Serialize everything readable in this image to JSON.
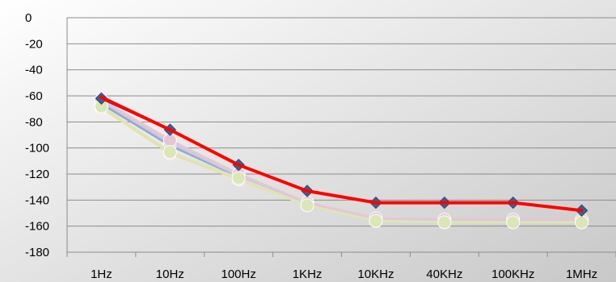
{
  "chart_data": {
    "type": "line",
    "title": "",
    "xlabel": "",
    "ylabel": "",
    "categories": [
      "1Hz",
      "10Hz",
      "100Hz",
      "1KHz",
      "10KHz",
      "40KHz",
      "100KHz",
      "1MHz"
    ],
    "ylim": [
      -180,
      0
    ],
    "yticks": [
      0,
      -20,
      -40,
      -60,
      -80,
      -100,
      -120,
      -140,
      -160,
      -180
    ],
    "grid": true,
    "legend": "none",
    "series": [
      {
        "color": "#9aa8c8",
        "marker": "circle",
        "values": [
          -66,
          -98,
          -122,
          -143,
          -155,
          -156,
          -156,
          -156
        ]
      },
      {
        "color": "#c4cce8",
        "marker": "circle",
        "values": [
          -64,
          -96,
          -121,
          -142,
          -155,
          -156,
          -156,
          -156
        ]
      },
      {
        "color": "#e8c4d4",
        "marker": "circle",
        "values": [
          -63,
          -94,
          -120,
          -142,
          -154,
          -155,
          -155,
          -155
        ]
      },
      {
        "color": "#f2d8a8",
        "marker": "circle",
        "values": [
          -69,
          -104,
          -124,
          -144,
          -156,
          -157,
          -157,
          -157
        ]
      },
      {
        "color": "#d8e8b8",
        "marker": "circle",
        "values": [
          -68,
          -103,
          -123,
          -144,
          -156,
          -157,
          -157,
          -157
        ]
      },
      {
        "color": "#3f5f8f",
        "marker": "diamond",
        "values": [
          -62,
          -86,
          -113,
          -133,
          -142,
          -142,
          -142,
          -148
        ]
      },
      {
        "color": "#ff0000",
        "marker": "none",
        "values": [
          -61,
          -86,
          -113,
          -133,
          -142,
          -142,
          -142,
          -148
        ]
      }
    ]
  }
}
